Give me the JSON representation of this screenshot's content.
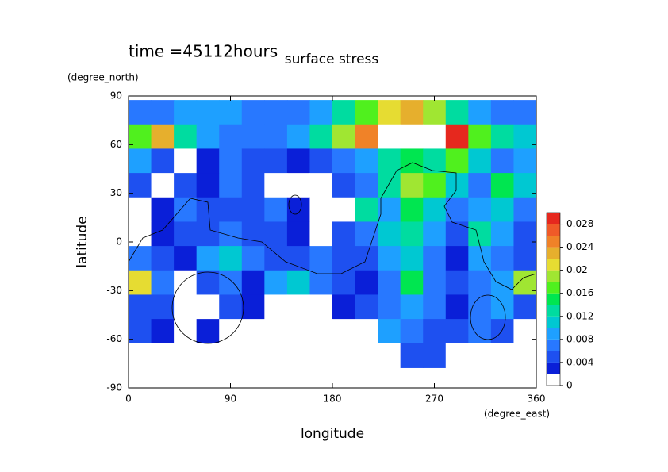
{
  "chart_data": {
    "type": "contour",
    "title": "surface stress",
    "subtitle": "time =45112hours",
    "xlabel": "longitude",
    "xunit": "(degree_east)",
    "ylabel": "latitude",
    "yunit": "(degree_north)",
    "xlim": [
      0,
      360
    ],
    "xticks": [
      0,
      90,
      180,
      270,
      360
    ],
    "ylim": [
      -90,
      90
    ],
    "yticks": [
      -90,
      -60,
      -30,
      0,
      30,
      60,
      90
    ],
    "x": [
      10,
      30,
      50,
      70,
      90,
      110,
      130,
      150,
      170,
      190,
      210,
      230,
      250,
      270,
      290,
      310,
      330,
      350
    ],
    "y": [
      80,
      65,
      50,
      35,
      20,
      5,
      -10,
      -25,
      -40,
      -55,
      -70
    ],
    "z": [
      [
        0.006,
        0.007,
        0.008,
        0.009,
        0.008,
        0.007,
        0.006,
        0.007,
        0.009,
        0.012,
        0.016,
        0.02,
        0.022,
        0.018,
        0.012,
        0.008,
        0.007,
        0.006
      ],
      [
        0.016,
        0.022,
        0.012,
        0.008,
        0.007,
        0.006,
        0.006,
        0.008,
        0.012,
        0.018,
        0.024,
        0.032,
        0.032,
        0.032,
        0.028,
        0.016,
        0.012,
        0.01
      ],
      [
        0.008,
        0.004,
        0.001,
        0.003,
        0.006,
        0.004,
        0.005,
        0.003,
        0.004,
        0.006,
        0.008,
        0.012,
        0.014,
        0.012,
        0.016,
        0.01,
        0.006,
        0.008
      ],
      [
        0.004,
        0.001,
        0.004,
        0.003,
        0.006,
        0.005,
        0.001,
        0.001,
        0.001,
        0.004,
        0.006,
        0.012,
        0.018,
        0.016,
        0.01,
        0.006,
        0.014,
        0.01
      ],
      [
        0.001,
        0.003,
        0.006,
        0.005,
        0.004,
        0.004,
        0.006,
        0.003,
        0.001,
        0.001,
        0.012,
        0.008,
        0.014,
        0.01,
        0.006,
        0.008,
        0.01,
        0.006
      ],
      [
        0.001,
        0.003,
        0.005,
        0.004,
        0.006,
        0.004,
        0.004,
        0.003,
        0.001,
        0.004,
        0.006,
        0.01,
        0.012,
        0.008,
        0.004,
        0.012,
        0.008,
        0.004
      ],
      [
        0.006,
        0.004,
        0.002,
        0.008,
        0.01,
        0.006,
        0.005,
        0.004,
        0.006,
        0.005,
        0.004,
        0.008,
        0.01,
        0.006,
        0.002,
        0.008,
        0.006,
        0.004
      ],
      [
        0.02,
        0.006,
        0.001,
        0.004,
        0.006,
        0.003,
        0.008,
        0.01,
        0.006,
        0.004,
        0.003,
        0.006,
        0.014,
        0.006,
        0.004,
        0.006,
        0.008,
        0.018
      ],
      [
        0.004,
        0.004,
        0.001,
        0.001,
        0.004,
        0.003,
        0.001,
        0.001,
        0.001,
        0.003,
        0.004,
        0.006,
        0.008,
        0.006,
        0.003,
        0.006,
        0.008,
        0.004
      ],
      [
        0.004,
        0.003,
        0.001,
        0.002,
        0.001,
        0.001,
        0.001,
        0.001,
        0.001,
        0.001,
        0.001,
        0.008,
        0.006,
        0.004,
        0.004,
        0.006,
        0.004,
        0.001
      ],
      [
        0.001,
        0.001,
        0.001,
        0.001,
        0.001,
        0.001,
        0.001,
        0.001,
        0.001,
        0.001,
        0.001,
        0.001,
        0.005,
        0.004,
        0.001,
        0.001,
        0.001,
        0.001
      ]
    ],
    "levels": [
      0,
      0.002,
      0.004,
      0.006,
      0.008,
      0.01,
      0.012,
      0.014,
      0.016,
      0.018,
      0.02,
      0.022,
      0.024,
      0.026,
      0.028,
      0.03
    ],
    "colors": [
      "#ffffff",
      "#0a1fd8",
      "#1e50f0",
      "#2878ff",
      "#1ea0ff",
      "#00c8d2",
      "#00dca0",
      "#00e650",
      "#50f01e",
      "#a0e632",
      "#e6dc32",
      "#e6af2d",
      "#f08228",
      "#f05a28",
      "#e6281e"
    ],
    "above_color": "#ffffff",
    "colorbar_ticks": [
      0,
      0.004,
      0.008,
      0.012,
      0.016,
      0.02,
      0.024,
      0.028
    ]
  }
}
